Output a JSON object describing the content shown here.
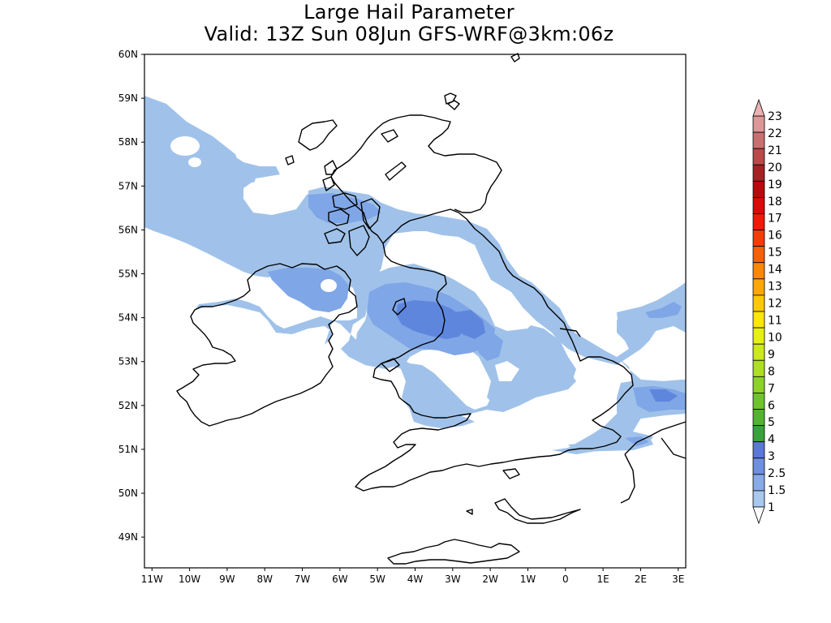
{
  "title": {
    "line1": "Large Hail Parameter",
    "line2": "Valid: 13Z Sun 08Jun GFS-WRF@3km:06z"
  },
  "map": {
    "lat_labels": [
      "60N",
      "59N",
      "58N",
      "57N",
      "56N",
      "55N",
      "54N",
      "53N",
      "52N",
      "51N",
      "50N",
      "49N"
    ],
    "lat_values": [
      60,
      59,
      58,
      57,
      56,
      55,
      54,
      53,
      52,
      51,
      50,
      49
    ],
    "lon_labels": [
      "11W",
      "10W",
      "9W",
      "8W",
      "7W",
      "6W",
      "5W",
      "4W",
      "3W",
      "2W",
      "1W",
      "0",
      "1E",
      "2E",
      "3E"
    ],
    "lon_values": [
      -11,
      -10,
      -9,
      -8,
      -7,
      -6,
      -5,
      -4,
      -3,
      -2,
      -1,
      0,
      1,
      2,
      3
    ],
    "lon_range": [
      -11.2,
      3.2
    ],
    "lat_range": [
      48.3,
      60
    ],
    "colors": {
      "coastline": "#000000",
      "shade_1": "#a0c2ea",
      "shade_1_5": "#7fa6e6",
      "shade_2_5": "#5e86dc"
    }
  },
  "colorbar": {
    "labels": [
      "1",
      "1.5",
      "2.5",
      "3",
      "4",
      "5",
      "6",
      "7",
      "8",
      "9",
      "10",
      "11",
      "12",
      "13",
      "14",
      "15",
      "16",
      "17",
      "18",
      "19",
      "20",
      "21",
      "22",
      "23"
    ],
    "colors": [
      "#a8c8ee",
      "#88aae6",
      "#6f8fdf",
      "#5a78d6",
      "#3aa23a",
      "#52b432",
      "#6ec42e",
      "#8cd22a",
      "#aede26",
      "#cce81e",
      "#e6f014",
      "#fde60a",
      "#fcc80a",
      "#fca80a",
      "#f9880a",
      "#f5600a",
      "#f43c0a",
      "#ef1a0a",
      "#d80a0a",
      "#b80a0a",
      "#a42222",
      "#b84a4a",
      "#c87070",
      "#dc9898"
    ],
    "under_color": "#ffffff",
    "over_color": "#eab2b2"
  }
}
